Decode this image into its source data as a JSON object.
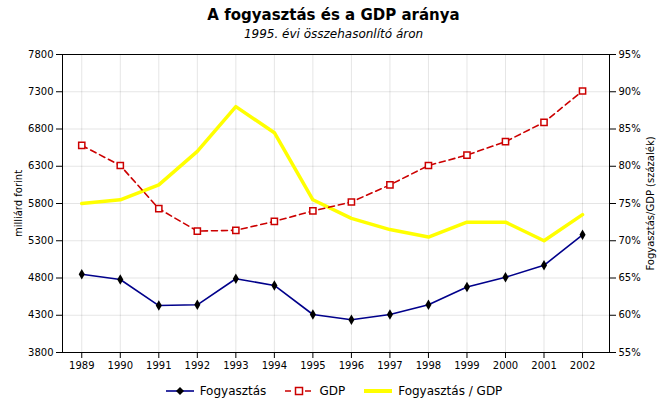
{
  "chart_data": {
    "type": "line",
    "title": "A fogyasztás és a GDP aránya",
    "subtitle": "1995. évi összehasonlító áron",
    "x": [
      1989,
      1990,
      1991,
      1992,
      1993,
      1994,
      1995,
      1996,
      1997,
      1998,
      1999,
      2000,
      2001,
      2002
    ],
    "series": [
      {
        "name": "Fogyasztás",
        "color": "#00008b",
        "marker": "diamond",
        "line_style": "solid",
        "values": [
          4850,
          4780,
          4430,
          4440,
          4790,
          4700,
          4310,
          4240,
          4310,
          4440,
          4680,
          4810,
          4970,
          5380
        ]
      },
      {
        "name": "GDP",
        "color": "#cc0000",
        "marker": "square",
        "line_style": "dashed",
        "values": [
          6580,
          6310,
          5730,
          5430,
          5440,
          5560,
          5700,
          5820,
          6050,
          6310,
          6450,
          6630,
          6890,
          7310
        ]
      },
      {
        "name": "Fogyasztás / GDP",
        "color": "#ffff00",
        "line_style": "solid",
        "axis": "y2",
        "values": [
          75,
          75.5,
          77.5,
          82,
          88,
          84.5,
          75.5,
          73,
          71.5,
          70.5,
          72.5,
          72.5,
          70,
          73.5
        ]
      }
    ],
    "xlim": [
      1988.5,
      2002.7
    ],
    "xticks": [
      1989,
      1990,
      1991,
      1992,
      1993,
      1994,
      1995,
      1996,
      1997,
      1998,
      1999,
      2000,
      2001,
      2002
    ],
    "ylim": [
      3800,
      7800
    ],
    "yticks": [
      3800,
      4300,
      4800,
      5300,
      5800,
      6300,
      6800,
      7300,
      7800
    ],
    "y2lim": [
      55,
      95
    ],
    "y2ticks": [
      {
        "value": 55,
        "label": "55%"
      },
      {
        "value": 60,
        "label": "60%"
      },
      {
        "value": 65,
        "label": "65%"
      },
      {
        "value": 70,
        "label": "70%"
      },
      {
        "value": 75,
        "label": "75%"
      },
      {
        "value": 80,
        "label": "80%"
      },
      {
        "value": 85,
        "label": "85%"
      },
      {
        "value": 90,
        "label": "90%"
      },
      {
        "value": 95,
        "label": "95%"
      }
    ],
    "ylabel": "milliárd forint",
    "y2label": "Fogyasztás/GDP (százalék)",
    "grid": true,
    "legend": "bottom"
  }
}
